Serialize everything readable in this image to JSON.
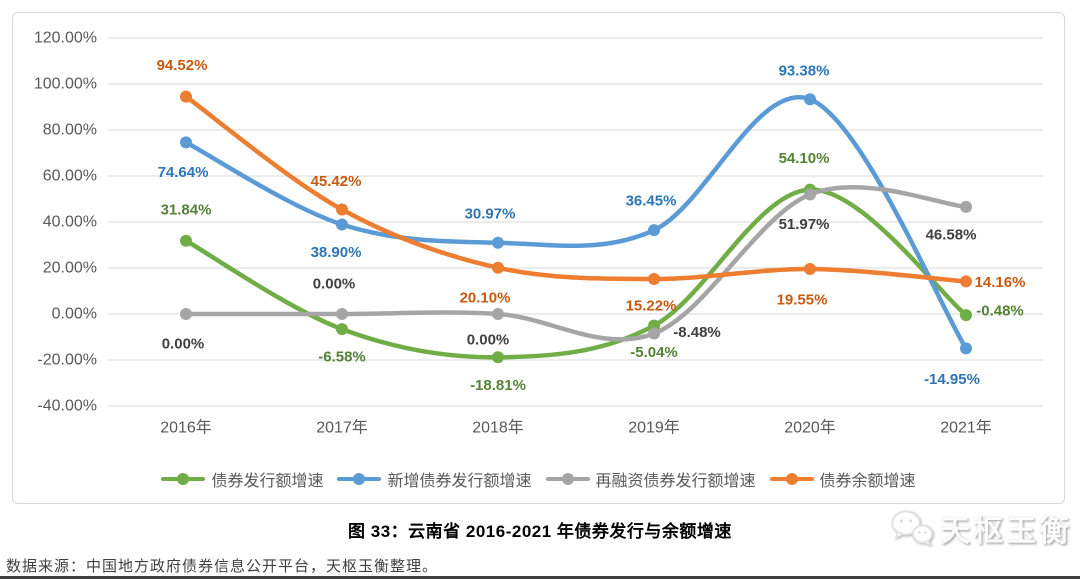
{
  "chart_data": {
    "type": "line",
    "title": "图 33：云南省 2016-2021 年债券发行与余额增速",
    "categories": [
      "2016年",
      "2017年",
      "2018年",
      "2019年",
      "2020年",
      "2021年"
    ],
    "y_tick_labels": [
      "120.00%",
      "100.00%",
      "80.00%",
      "60.00%",
      "40.00%",
      "20.00%",
      "0.00%",
      "-20.00%",
      "-40.00%"
    ],
    "ylim": [
      -40,
      120
    ],
    "grid": true,
    "smooth": true,
    "data_labels": true,
    "legend_position": "bottom",
    "series": [
      {
        "name": "债券发行额增速",
        "color": "#70AD47",
        "label_color": "#548235",
        "values": [
          31.84,
          -6.58,
          -18.81,
          -5.04,
          54.1,
          -0.48
        ],
        "label_offsets": [
          [
            0,
            -31
          ],
          [
            0,
            28
          ],
          [
            0,
            28
          ],
          [
            0,
            27
          ],
          [
            -6,
            -31
          ],
          [
            34,
            -4
          ]
        ]
      },
      {
        "name": "新增债券发行额增速",
        "color": "#5B9BD5",
        "label_color": "#2E75B6",
        "values": [
          74.64,
          38.9,
          30.97,
          36.45,
          93.38,
          -14.95
        ],
        "label_offsets": [
          [
            -3,
            30
          ],
          [
            -6,
            28
          ],
          [
            -8,
            -29
          ],
          [
            -3,
            -29
          ],
          [
            -6,
            -28
          ],
          [
            -14,
            31
          ]
        ]
      },
      {
        "name": "再融资债券发行额增速",
        "color": "#A5A5A5",
        "label_color": "#404040",
        "values": [
          0.0,
          0.0,
          0.0,
          -8.48,
          51.97,
          46.58
        ],
        "label_offsets": [
          [
            -3,
            30
          ],
          [
            -8,
            -30
          ],
          [
            -10,
            26
          ],
          [
            43,
            -1
          ],
          [
            -6,
            30
          ],
          [
            -15,
            28
          ]
        ]
      },
      {
        "name": "债券余额增速",
        "color": "#ED7D31",
        "label_color": "#C55A11",
        "values": [
          94.52,
          45.42,
          20.1,
          15.22,
          19.55,
          14.16
        ],
        "label_offsets": [
          [
            -4,
            -31
          ],
          [
            -6,
            -28
          ],
          [
            -13,
            30
          ],
          [
            -3,
            27
          ],
          [
            -8,
            31
          ],
          [
            34,
            1
          ]
        ]
      }
    ]
  },
  "footer": {
    "source": "数据来源：中国地方政府债券信息公开平台，天枢玉衡整理。"
  },
  "watermark": {
    "text": "天枢玉衡",
    "icon": "wechat-icon"
  },
  "style": {
    "gridline_color": "#d9d9d9",
    "axis_text_color": "#595959"
  }
}
